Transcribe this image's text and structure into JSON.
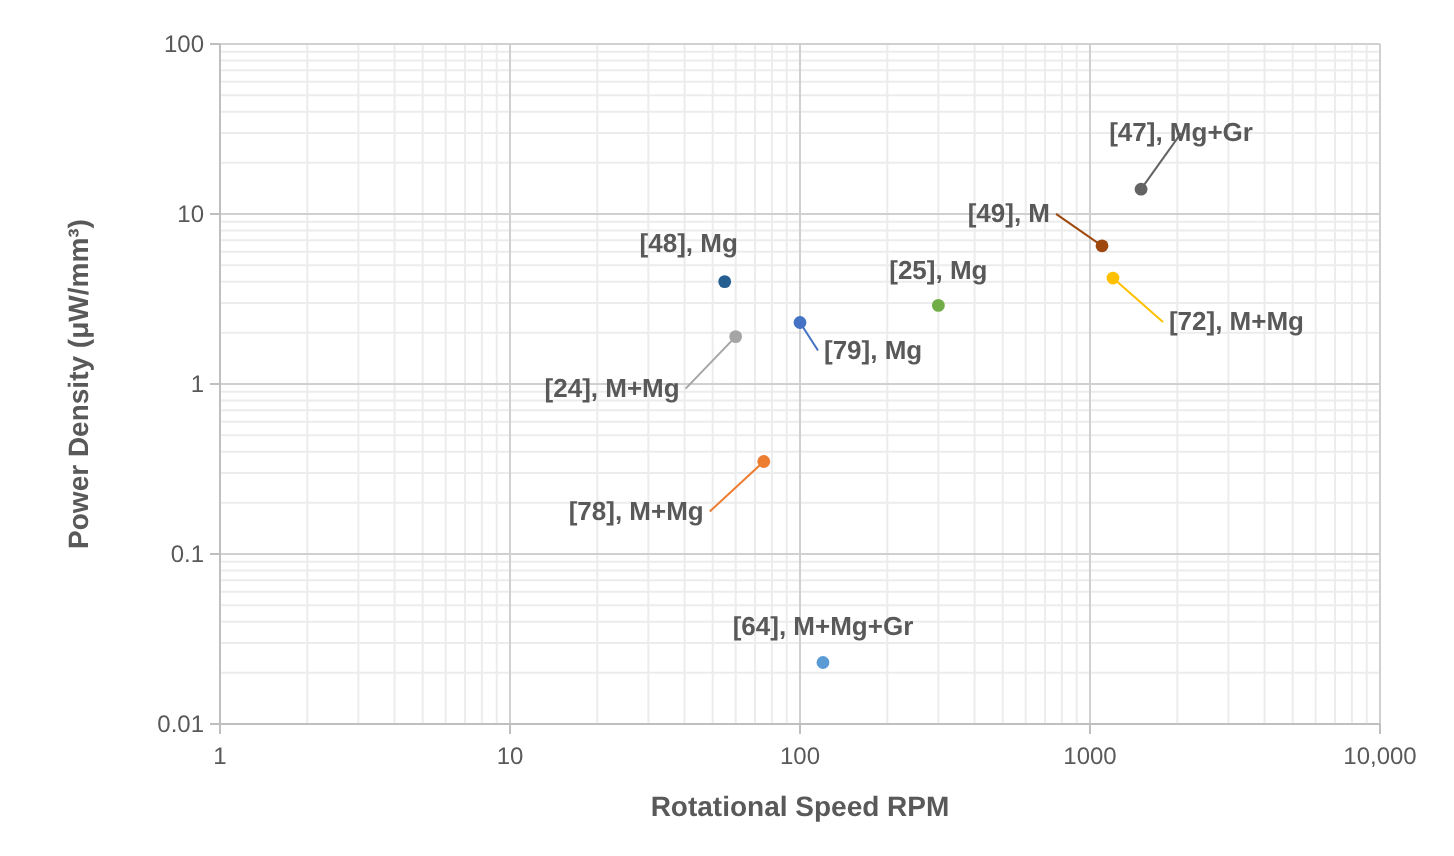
{
  "chart_data": {
    "type": "scatter",
    "xlabel": "Rotational Speed RPM",
    "ylabel": "Power Density (μW/mm³)",
    "log": "xy",
    "grid": true,
    "marker": "circle",
    "xlim": [
      1,
      10000
    ],
    "ylim": [
      0.01,
      100
    ],
    "xticks": [
      1,
      10,
      100,
      1000,
      {
        "value": 10000,
        "label": "10,000"
      }
    ],
    "yticks": [
      0.01,
      0.1,
      1,
      10,
      100
    ],
    "series": [
      {
        "name": "[48], Mg",
        "color": "#255e91",
        "x": [
          55
        ],
        "values": [
          4
        ]
      },
      {
        "name": "[24], M+Mg",
        "color": "#a5a5a5",
        "x": [
          60
        ],
        "values": [
          1.9
        ]
      },
      {
        "name": "[79], Mg",
        "color": "#4472c4",
        "x": [
          100
        ],
        "values": [
          2.3
        ]
      },
      {
        "name": "[25], Mg",
        "color": "#70ad47",
        "x": [
          300
        ],
        "values": [
          2.9
        ]
      },
      {
        "name": "[49], M",
        "color": "#9e480e",
        "x": [
          1100
        ],
        "values": [
          6.5
        ]
      },
      {
        "name": "[72], M+Mg",
        "color": "#ffc000",
        "x": [
          1200
        ],
        "values": [
          4.2
        ]
      },
      {
        "name": "[47], Mg+Gr",
        "color": "#636363",
        "x": [
          1500
        ],
        "values": [
          14
        ]
      },
      {
        "name": "[78], M+Mg",
        "color": "#ed7d31",
        "x": [
          75
        ],
        "values": [
          0.35
        ]
      },
      {
        "name": "[64], M+Mg+Gr",
        "color": "#5b9bd5",
        "x": [
          120
        ],
        "values": [
          0.023
        ]
      }
    ]
  }
}
